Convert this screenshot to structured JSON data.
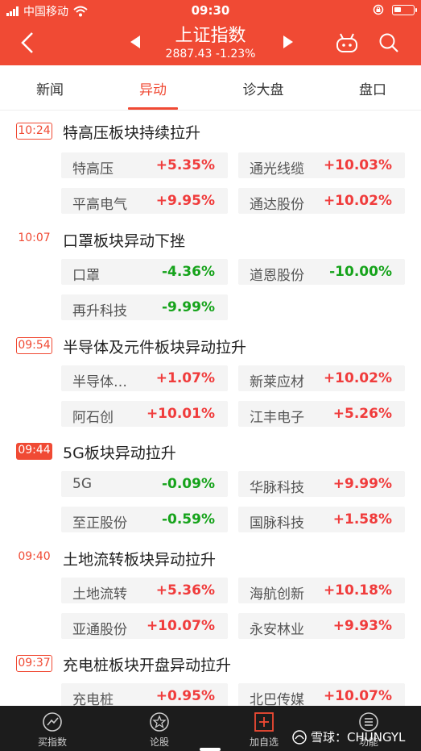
{
  "status_bar": {
    "carrier": "中国移动",
    "time": "09:30"
  },
  "header": {
    "title": "上证指数",
    "price": "2887.43",
    "change": "-1.23%"
  },
  "tabs": [
    {
      "label": "新闻"
    },
    {
      "label": "异动"
    },
    {
      "label": "诊大盘"
    },
    {
      "label": "盘口"
    }
  ],
  "events": [
    {
      "time": "10:24",
      "style": "boxed",
      "title": "特高压板块持续拉升",
      "stocks": [
        {
          "name": "特高压",
          "pct": "+5.35%",
          "dir": "up"
        },
        {
          "name": "通光线缆",
          "pct": "+10.03%",
          "dir": "up"
        },
        {
          "name": "平高电气",
          "pct": "+9.95%",
          "dir": "up"
        },
        {
          "name": "通达股份",
          "pct": "+10.02%",
          "dir": "up"
        }
      ]
    },
    {
      "time": "10:07",
      "style": "plain",
      "title": "口罩板块异动下挫",
      "stocks": [
        {
          "name": "口罩",
          "pct": "-4.36%",
          "dir": "down"
        },
        {
          "name": "道恩股份",
          "pct": "-10.00%",
          "dir": "down"
        },
        {
          "name": "再升科技",
          "pct": "-9.99%",
          "dir": "down"
        }
      ]
    },
    {
      "time": "09:54",
      "style": "boxed",
      "title": "半导体及元件板块异动拉升",
      "stocks": [
        {
          "name": "半导体…",
          "pct": "+1.07%",
          "dir": "up"
        },
        {
          "name": "新莱应材",
          "pct": "+10.02%",
          "dir": "up"
        },
        {
          "name": "阿石创",
          "pct": "+10.01%",
          "dir": "up"
        },
        {
          "name": "江丰电子",
          "pct": "+5.26%",
          "dir": "up"
        }
      ]
    },
    {
      "time": "09:44",
      "style": "filled",
      "title": "5G板块异动拉升",
      "stocks": [
        {
          "name": "5G",
          "pct": "-0.09%",
          "dir": "down"
        },
        {
          "name": "华脉科技",
          "pct": "+9.99%",
          "dir": "up"
        },
        {
          "name": "至正股份",
          "pct": "-0.59%",
          "dir": "down"
        },
        {
          "name": "国脉科技",
          "pct": "+1.58%",
          "dir": "up"
        }
      ]
    },
    {
      "time": "09:40",
      "style": "plain",
      "title": "土地流转板块异动拉升",
      "stocks": [
        {
          "name": "土地流转",
          "pct": "+5.36%",
          "dir": "up"
        },
        {
          "name": "海航创新",
          "pct": "+10.18%",
          "dir": "up"
        },
        {
          "name": "亚通股份",
          "pct": "+10.07%",
          "dir": "up"
        },
        {
          "name": "永安林业",
          "pct": "+9.93%",
          "dir": "up"
        }
      ]
    },
    {
      "time": "09:37",
      "style": "boxed",
      "title": "充电桩板块开盘异动拉升",
      "stocks": [
        {
          "name": "充电桩",
          "pct": "+0.95%",
          "dir": "up"
        },
        {
          "name": "北巴传媒",
          "pct": "+10.07%",
          "dir": "up"
        }
      ]
    }
  ],
  "bottom_bar": [
    {
      "label": "买指数",
      "icon": "buy-index-icon"
    },
    {
      "label": "论股",
      "icon": "discuss-icon"
    },
    {
      "label": "加自选",
      "icon": "add-watchlist-icon"
    },
    {
      "label": "功能",
      "icon": "menu-icon"
    }
  ],
  "watermark": "雪球：CHUNGYL",
  "colors": {
    "brand": "#f04a34",
    "up": "#f03c3c",
    "down": "#16a31b"
  }
}
